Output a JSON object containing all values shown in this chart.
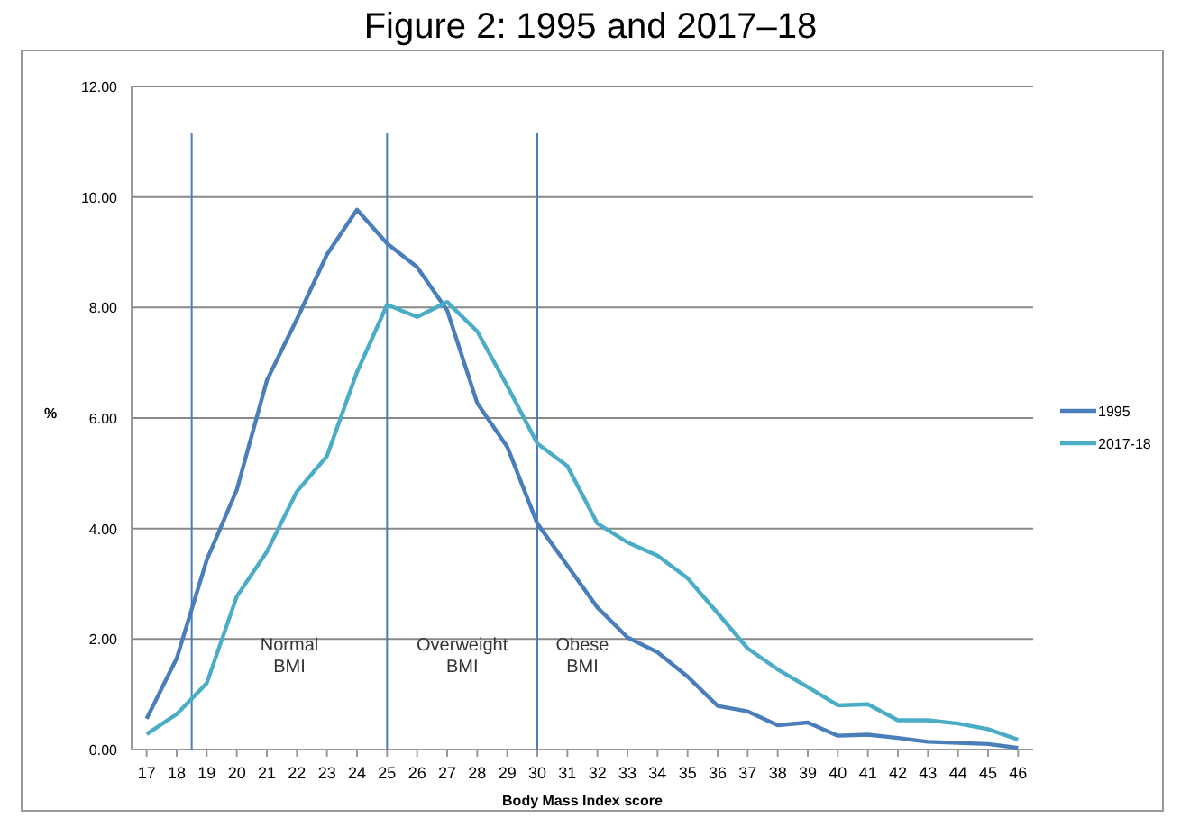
{
  "chart_data": {
    "type": "line",
    "title": "Figure 2: 1995 and 2017–18",
    "xlabel": "Body Mass Index score",
    "ylabel": "%",
    "x": [
      17,
      18,
      19,
      20,
      21,
      22,
      23,
      24,
      25,
      26,
      27,
      28,
      29,
      30,
      31,
      32,
      33,
      34,
      35,
      36,
      37,
      38,
      39,
      40,
      41,
      42,
      43,
      44,
      45,
      46
    ],
    "series": [
      {
        "name": "1995",
        "color": "#4a7ebb",
        "values": [
          0.56,
          1.65,
          3.43,
          4.7,
          6.68,
          7.79,
          8.96,
          9.77,
          9.16,
          8.73,
          7.95,
          6.27,
          5.48,
          4.09,
          3.33,
          2.57,
          2.03,
          1.76,
          1.32,
          0.79,
          0.69,
          0.44,
          0.49,
          0.25,
          0.27,
          0.21,
          0.14,
          0.12,
          0.1,
          0.03
        ]
      },
      {
        "name": "2017-18",
        "color": "#4bacc6",
        "values": [
          0.28,
          0.64,
          1.2,
          2.77,
          3.58,
          4.67,
          5.31,
          6.83,
          8.05,
          7.83,
          8.1,
          7.57,
          6.58,
          5.54,
          5.13,
          4.09,
          3.75,
          3.51,
          3.1,
          2.47,
          1.83,
          1.45,
          1.13,
          0.8,
          0.82,
          0.53,
          0.53,
          0.47,
          0.37,
          0.18
        ]
      }
    ],
    "xlim": [
      16.5,
      46.5
    ],
    "xticks": [
      17,
      18,
      19,
      20,
      21,
      22,
      23,
      24,
      25,
      26,
      27,
      28,
      29,
      30,
      31,
      32,
      33,
      34,
      35,
      36,
      37,
      38,
      39,
      40,
      41,
      42,
      43,
      44,
      45,
      46
    ],
    "ylim": [
      0,
      12
    ],
    "yticks": [
      {
        "value": 0,
        "label": "0.00"
      },
      {
        "value": 2,
        "label": "2.00"
      },
      {
        "value": 4,
        "label": "4.00"
      },
      {
        "value": 6,
        "label": "6.00"
      },
      {
        "value": 8,
        "label": "8.00"
      },
      {
        "value": 10,
        "label": "10.00"
      },
      {
        "value": 12,
        "label": "12.00"
      }
    ],
    "ref_lines": [
      {
        "axis": "x",
        "value": 18.5,
        "color": "#4a7ebb"
      },
      {
        "axis": "x",
        "value": 25,
        "color": "#4a7ebb"
      },
      {
        "axis": "x",
        "value": 30,
        "color": "#4a7ebb"
      }
    ],
    "annotations": [
      "Normal\nBMI",
      "Overweight\nBMI",
      "Obese\nBMI"
    ],
    "grid": "y",
    "legend": "right",
    "marker": "none",
    "line_style": "solid"
  }
}
